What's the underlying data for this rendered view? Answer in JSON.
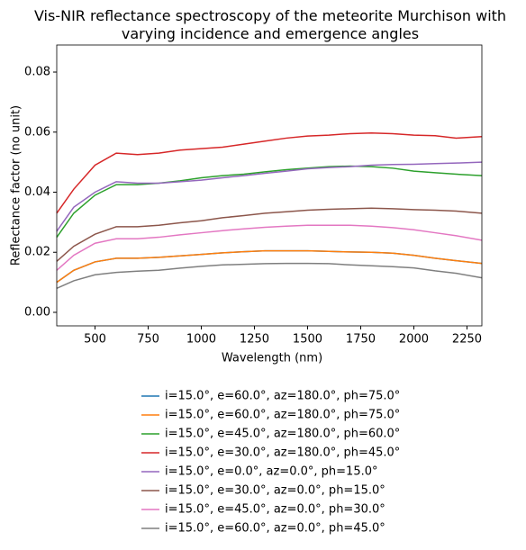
{
  "chart_data": {
    "type": "line",
    "title": "Vis-NIR reflectance spectroscopy of the meteorite Murchison with varying incidence and emergence angles",
    "xlabel": "Wavelength (nm)",
    "ylabel": "Reflectance factor (no unit)",
    "x": [
      320,
      400,
      500,
      600,
      700,
      800,
      900,
      1000,
      1100,
      1200,
      1300,
      1400,
      1500,
      1600,
      1700,
      1800,
      1900,
      2000,
      2100,
      2200,
      2320
    ],
    "xlim": [
      320,
      2320
    ],
    "xticks": [
      500,
      750,
      1000,
      1250,
      1500,
      1750,
      2000,
      2250
    ],
    "ylim": [
      -0.0045,
      0.089
    ],
    "yticks": [
      {
        "value": 0,
        "label": "0.00"
      },
      0.02,
      0.04,
      0.06,
      0.08
    ],
    "grid": false,
    "legend": "below",
    "series": [
      {
        "name": "i=15.0°, e=60.0°, az=180.0°, ph=75.0°",
        "color": "#1f77b4",
        "values": [
          0.01,
          0.014,
          0.0168,
          0.018,
          0.018,
          0.0183,
          0.0188,
          0.0193,
          0.0198,
          0.0202,
          0.0205,
          0.0205,
          0.0205,
          0.0203,
          0.0201,
          0.02,
          0.0197,
          0.019,
          0.018,
          0.0172,
          0.0163
        ]
      },
      {
        "name": "i=15.0°, e=60.0°, az=180.0°, ph=75.0°",
        "color": "#ff7f0e",
        "values": [
          0.01,
          0.014,
          0.0168,
          0.018,
          0.018,
          0.0183,
          0.0188,
          0.0193,
          0.0198,
          0.0202,
          0.0205,
          0.0205,
          0.0205,
          0.0203,
          0.0201,
          0.02,
          0.0197,
          0.019,
          0.018,
          0.0172,
          0.0163
        ]
      },
      {
        "name": "i=15.0°, e=45.0°, az=180.0°, ph=60.0°",
        "color": "#2ca02c",
        "values": [
          0.025,
          0.033,
          0.039,
          0.0425,
          0.0425,
          0.043,
          0.0438,
          0.0448,
          0.0455,
          0.046,
          0.0468,
          0.0475,
          0.048,
          0.0485,
          0.0487,
          0.0485,
          0.048,
          0.047,
          0.0465,
          0.046,
          0.0455
        ]
      },
      {
        "name": "i=15.0°, e=30.0°, az=180.0°, ph=45.0°",
        "color": "#d62728",
        "values": [
          0.033,
          0.041,
          0.049,
          0.053,
          0.0525,
          0.053,
          0.054,
          0.0545,
          0.055,
          0.056,
          0.057,
          0.058,
          0.0587,
          0.059,
          0.0595,
          0.0597,
          0.0595,
          0.059,
          0.0588,
          0.058,
          0.0585
        ]
      },
      {
        "name": "i=15.0°, e=0.0°, az=0.0°, ph=15.0°",
        "color": "#9467bd",
        "values": [
          0.027,
          0.035,
          0.04,
          0.0435,
          0.043,
          0.043,
          0.0435,
          0.044,
          0.0448,
          0.0455,
          0.0463,
          0.047,
          0.0478,
          0.0482,
          0.0485,
          0.049,
          0.0492,
          0.0493,
          0.0495,
          0.0497,
          0.05
        ]
      },
      {
        "name": "i=15.0°, e=30.0°, az=0.0°, ph=15.0°",
        "color": "#8c564b",
        "values": [
          0.017,
          0.022,
          0.026,
          0.0285,
          0.0285,
          0.029,
          0.0298,
          0.0305,
          0.0315,
          0.0322,
          0.033,
          0.0335,
          0.034,
          0.0343,
          0.0345,
          0.0347,
          0.0345,
          0.0342,
          0.034,
          0.0337,
          0.033
        ]
      },
      {
        "name": "i=15.0°, e=45.0°, az=0.0°, ph=30.0°",
        "color": "#e377c2",
        "values": [
          0.014,
          0.019,
          0.023,
          0.0245,
          0.0245,
          0.025,
          0.0258,
          0.0265,
          0.0272,
          0.0278,
          0.0283,
          0.0287,
          0.029,
          0.029,
          0.029,
          0.0287,
          0.0282,
          0.0275,
          0.0265,
          0.0255,
          0.024
        ]
      },
      {
        "name": "i=15.0°, e=60.0°, az=0.0°, ph=45.0°",
        "color": "#7f7f7f",
        "values": [
          0.008,
          0.0105,
          0.0125,
          0.0133,
          0.0137,
          0.014,
          0.0147,
          0.0153,
          0.0158,
          0.016,
          0.0162,
          0.0163,
          0.0163,
          0.0162,
          0.0158,
          0.0155,
          0.0152,
          0.0148,
          0.0138,
          0.013,
          0.0115
        ]
      }
    ]
  }
}
